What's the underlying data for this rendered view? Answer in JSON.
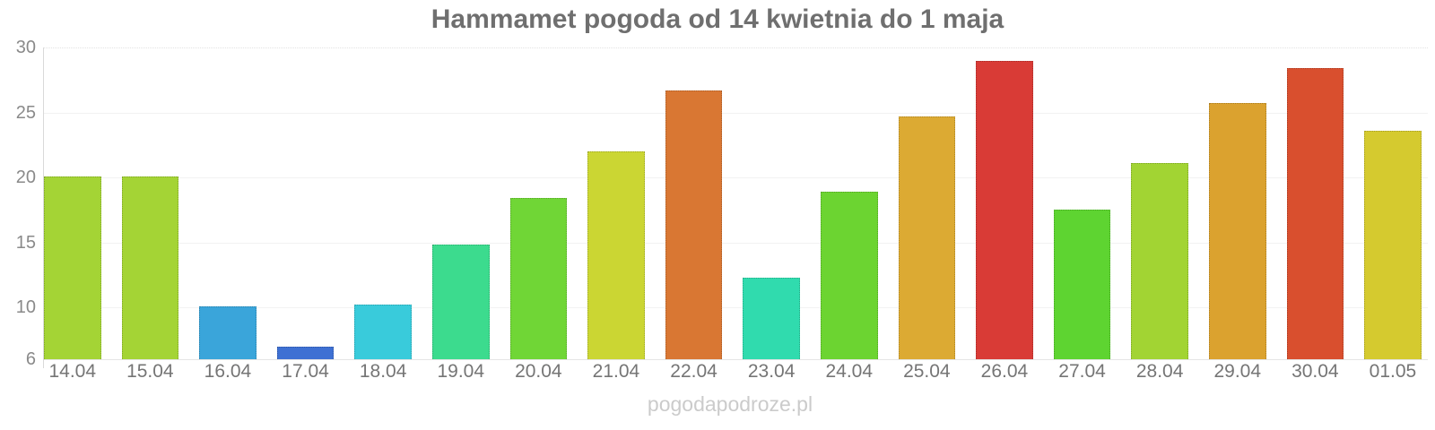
{
  "page": {
    "watermark": "pogodapodroze.pl"
  },
  "colors": {
    "background": "#ffffff",
    "title_text": "#6f6f6f",
    "y_axis_text": "#8a8a8a",
    "x_axis_text": "#757575",
    "watermark_text": "#cbcbcb",
    "grid_line": "#f2f2f2",
    "axis_line": "#d9d9d9"
  },
  "chart_data": {
    "type": "bar",
    "title": "Hammamet pogoda od 14 kwietnia do 1 maja",
    "xlabel": "",
    "ylabel": "",
    "categories": [
      "14.04",
      "15.04",
      "16.04",
      "17.04",
      "18.04",
      "19.04",
      "20.04",
      "21.04",
      "22.04",
      "23.04",
      "24.04",
      "25.04",
      "26.04",
      "27.04",
      "28.04",
      "29.04",
      "30.04",
      "01.05"
    ],
    "values": [
      20.1,
      20.1,
      10.1,
      7.0,
      10.2,
      14.8,
      18.4,
      22.0,
      26.7,
      12.3,
      18.9,
      24.7,
      29.0,
      17.5,
      21.1,
      25.7,
      28.4,
      23.6
    ],
    "bar_colors": [
      "#a4d435",
      "#a4d435",
      "#3aa5da",
      "#3e70d3",
      "#39cbdb",
      "#3cdb8e",
      "#70d636",
      "#cbd633",
      "#d97733",
      "#30dbae",
      "#6cd431",
      "#dcaa33",
      "#d93b36",
      "#5ed431",
      "#a2d433",
      "#dba22f",
      "#d94f2e",
      "#d5ca2f"
    ],
    "y_ticks": [
      30,
      25,
      20,
      15,
      10,
      6
    ],
    "ylim": [
      6,
      30
    ],
    "grid": true,
    "legend": false,
    "watermark": "pogodapodroze.pl"
  }
}
